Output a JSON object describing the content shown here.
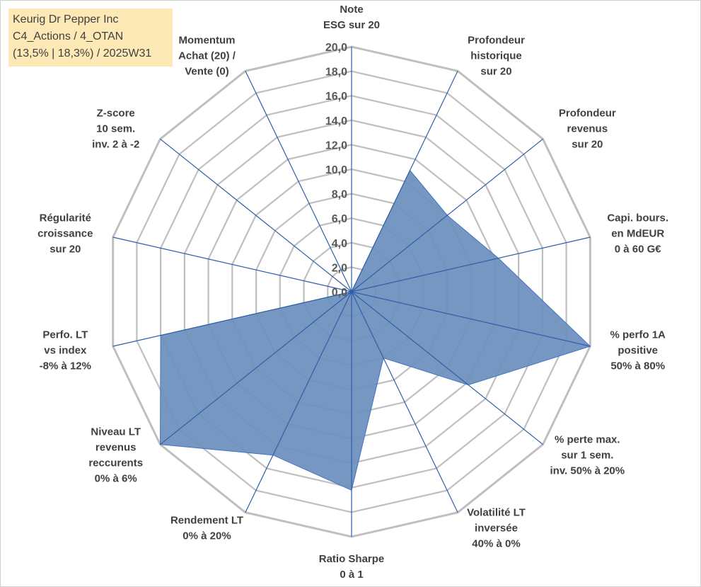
{
  "info_box": {
    "line1": "Keurig Dr Pepper Inc",
    "line2": "C4_Actions / 4_OTAN",
    "line3": "(13,5% | 18,3%) / 2025W31"
  },
  "colors": {
    "fill": "#6c8fbd",
    "stroke": "#4472c4",
    "grid": "#bfbfbf",
    "spoke": "#2e5fa8"
  },
  "chart_data": {
    "type": "radar",
    "title": "",
    "rmin": 0,
    "rmax": 20,
    "tick_step": 2,
    "tick_labels": [
      "0,0",
      "2,0",
      "4,0",
      "6,0",
      "8,0",
      "10,0",
      "12,0",
      "14,0",
      "16,0",
      "18,0",
      "20,0"
    ],
    "axes": [
      [
        "Note",
        "ESG sur 20"
      ],
      [
        "Profondeur",
        "historique",
        "sur 20"
      ],
      [
        "Profondeur",
        "revenus",
        "sur 20"
      ],
      [
        "Capi. bours.",
        "en MdEUR",
        "0 à 60 G€"
      ],
      [
        "% perfo 1A",
        "positive",
        "50% à 80%"
      ],
      [
        "% perte max.",
        "sur 1 sem.",
        "inv. 50% à 20%"
      ],
      [
        "Volatilité LT",
        "inversée",
        "40% à 0%"
      ],
      [
        "Ratio Sharpe",
        "0 à 1"
      ],
      [
        "Rendement LT",
        "0% à 20%"
      ],
      [
        "Niveau LT",
        "revenus",
        "reccurents",
        "0% à 6%"
      ],
      [
        "Perfo. LT",
        "vs index",
        "-8% à 12%"
      ],
      [
        "Régularité",
        "croissance",
        "sur 20"
      ],
      [
        "Z-score",
        "10 sem.",
        "inv. 2 à -2"
      ],
      [
        "Momentum",
        "Achat (20) /",
        "Vente (0)"
      ]
    ],
    "series": [
      {
        "values": [
          0,
          11.0,
          10.0,
          12.3,
          20.0,
          12.2,
          6.0,
          16.2,
          14.8,
          20.0,
          16.0,
          0,
          0,
          0
        ]
      }
    ]
  }
}
